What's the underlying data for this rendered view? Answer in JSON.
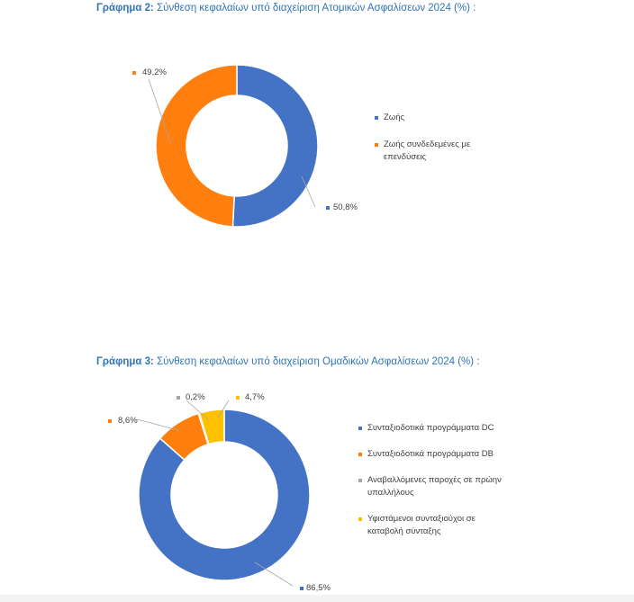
{
  "chart_data": [
    {
      "type": "pie",
      "variant": "donut",
      "title_lead": "Γράφημα 2:",
      "title": "Σύνθεση κεφαλαίων υπό διαχείριση Ατομικών Ασφαλίσεων 2024 (%) :",
      "categories": [
        "Ζωής",
        "Ζωής συνδεδεμένες με επενδύσεις"
      ],
      "values": [
        50.8,
        49.2
      ],
      "labels": [
        "50,8%",
        "49,2%"
      ],
      "colors": [
        "#4472c4",
        "#ff7f0e"
      ],
      "legend_position": "right"
    },
    {
      "type": "pie",
      "variant": "donut",
      "title_lead": "Γράφημα 3:",
      "title": "Σύνθεση κεφαλαίων υπό διαχείριση Ομαδικών Ασφαλίσεων 2024 (%) :",
      "categories": [
        "Συνταξιοδοτικά προγράμματα DC",
        "Συνταξιοδοτικά προγράμματα DB",
        "Αναβαλλόμενες παροχές σε πρώην υπαλλήλους",
        "Υφιστάμενοι συνταξιούχοι σε καταβολή σύνταξης"
      ],
      "values": [
        86.5,
        8.6,
        0.2,
        4.7
      ],
      "labels": [
        "86,5%",
        "8,6%",
        "0,2%",
        "4,7%"
      ],
      "colors": [
        "#4472c4",
        "#ff7f0e",
        "#a5a5a5",
        "#ffc000"
      ],
      "legend_position": "right"
    }
  ]
}
